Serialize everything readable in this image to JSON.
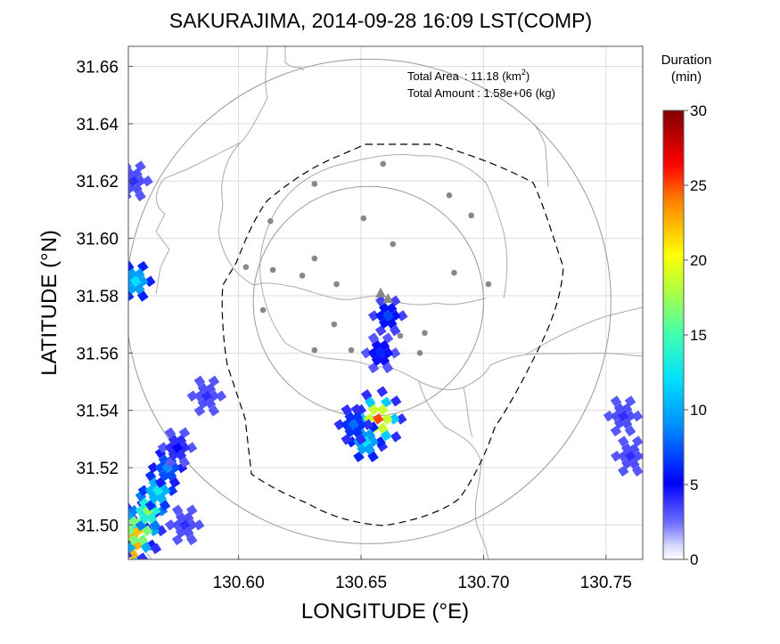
{
  "chart_data": {
    "type": "heatmap",
    "title": "SAKURAJIMA, 2014-09-28 16:09 LST(COMP)",
    "xlabel": "LONGITUDE (°E)",
    "ylabel": "LATITUDE (°N)",
    "xlim": [
      130.555,
      130.765
    ],
    "ylim": [
      31.488,
      31.667
    ],
    "xticks": [
      130.6,
      130.65,
      130.7,
      130.75
    ],
    "xtick_labels": [
      "130.60",
      "130.65",
      "130.70",
      "130.75"
    ],
    "yticks": [
      31.5,
      31.52,
      31.54,
      31.56,
      31.58,
      31.6,
      31.62,
      31.64,
      31.66
    ],
    "ytick_labels": [
      "31.50",
      "31.52",
      "31.54",
      "31.56",
      "31.58",
      "31.60",
      "31.62",
      "31.64",
      "31.66"
    ],
    "grid": true,
    "annotations": {
      "area_label": "Total Area",
      "area_value": ": 11.18 (km",
      "area_sup": "2",
      "area_close": ")",
      "amount_label": "Total Amount",
      "amount_value": ": 1.58e+06 (kg)"
    },
    "colorbar": {
      "title_line1": "Duration",
      "title_line2": "(min)",
      "range": [
        0,
        30
      ],
      "ticks": [
        0,
        5,
        10,
        15,
        20,
        25,
        30
      ],
      "tick_labels": [
        "0",
        "5",
        "10",
        "15",
        "20",
        "25",
        "30"
      ],
      "colormap": "jet"
    },
    "volcano_vents": [
      {
        "lon": 130.658,
        "lat": 31.581
      },
      {
        "lon": 130.661,
        "lat": 31.579
      }
    ],
    "stations": [
      {
        "lon": 130.659,
        "lat": 31.626
      },
      {
        "lon": 130.631,
        "lat": 31.619
      },
      {
        "lon": 130.686,
        "lat": 31.615
      },
      {
        "lon": 130.613,
        "lat": 31.606
      },
      {
        "lon": 130.651,
        "lat": 31.607
      },
      {
        "lon": 130.695,
        "lat": 31.608
      },
      {
        "lon": 130.663,
        "lat": 31.598
      },
      {
        "lon": 130.603,
        "lat": 31.59
      },
      {
        "lon": 130.614,
        "lat": 31.589
      },
      {
        "lon": 130.631,
        "lat": 31.593
      },
      {
        "lon": 130.688,
        "lat": 31.588
      },
      {
        "lon": 130.626,
        "lat": 31.587
      },
      {
        "lon": 130.64,
        "lat": 31.584
      },
      {
        "lon": 130.702,
        "lat": 31.584
      },
      {
        "lon": 130.61,
        "lat": 31.575
      },
      {
        "lon": 130.639,
        "lat": 31.57
      },
      {
        "lon": 130.666,
        "lat": 31.566
      },
      {
        "lon": 130.676,
        "lat": 31.567
      },
      {
        "lon": 130.631,
        "lat": 31.561
      },
      {
        "lon": 130.646,
        "lat": 31.561
      },
      {
        "lon": 130.674,
        "lat": 31.56
      }
    ],
    "range_circles": [
      {
        "center": {
          "lon": 130.653,
          "lat": 31.578
        },
        "radius_deg_lon": 0.047
      },
      {
        "center": {
          "lon": 130.653,
          "lat": 31.578
        },
        "radius_deg_lon": 0.099
      }
    ],
    "clusters": [
      {
        "lon": 130.555,
        "lat": 31.493,
        "dur": 30
      },
      {
        "lon": 130.559,
        "lat": 31.498,
        "dur": 22
      },
      {
        "lon": 130.563,
        "lat": 31.505,
        "dur": 17
      },
      {
        "lon": 130.567,
        "lat": 31.512,
        "dur": 13
      },
      {
        "lon": 130.571,
        "lat": 31.52,
        "dur": 9
      },
      {
        "lon": 130.575,
        "lat": 31.527,
        "dur": 5
      },
      {
        "lon": 130.578,
        "lat": 31.5,
        "dur": 4
      },
      {
        "lon": 130.558,
        "lat": 31.585,
        "dur": 12
      },
      {
        "lon": 130.557,
        "lat": 31.62,
        "dur": 4
      },
      {
        "lon": 130.587,
        "lat": 31.545,
        "dur": 4
      },
      {
        "lon": 130.657,
        "lat": 31.537,
        "dur": 25
      },
      {
        "lon": 130.652,
        "lat": 31.529,
        "dur": 12
      },
      {
        "lon": 130.647,
        "lat": 31.535,
        "dur": 8
      },
      {
        "lon": 130.658,
        "lat": 31.56,
        "dur": 6
      },
      {
        "lon": 130.661,
        "lat": 31.573,
        "dur": 7
      },
      {
        "lon": 130.757,
        "lat": 31.538,
        "dur": 4
      },
      {
        "lon": 130.76,
        "lat": 31.524,
        "dur": 4
      }
    ]
  }
}
